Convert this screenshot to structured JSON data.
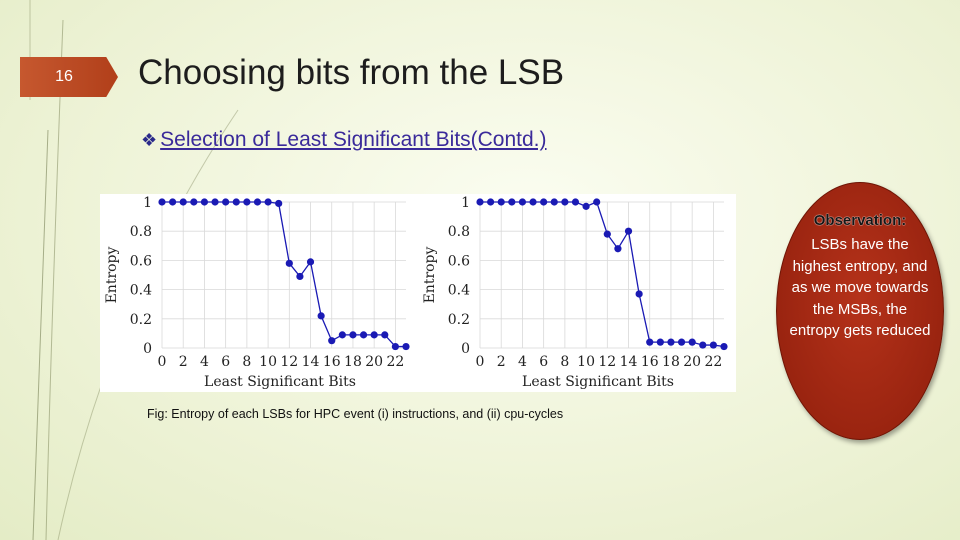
{
  "slide": {
    "number": "16",
    "title": "Choosing bits from the LSB",
    "subtitle": "Selection of Least Significant Bits(Contd.)",
    "caption": "Fig: Entropy of each LSBs for HPC event (i) instructions, and (ii) cpu-cycles"
  },
  "observation": {
    "title": "Observation:",
    "body": "LSBs have the highest entropy, and as we move towards the MSBs, the entropy gets reduced"
  },
  "colors": {
    "accent": "#b13f1a",
    "marker": "#1a1ab4",
    "subtitle": "#3a2a9a"
  },
  "chart_data": [
    {
      "type": "line",
      "title": "",
      "xlabel": "Least Significant Bits",
      "ylabel": "Entropy",
      "xlim": [
        0,
        23
      ],
      "ylim": [
        0,
        1
      ],
      "xticks": [
        0,
        2,
        4,
        6,
        8,
        10,
        12,
        14,
        16,
        18,
        20,
        22
      ],
      "yticks": [
        0,
        0.2,
        0.4,
        0.6,
        0.8,
        1
      ],
      "grid": true,
      "x": [
        0,
        1,
        2,
        3,
        4,
        5,
        6,
        7,
        8,
        9,
        10,
        11,
        12,
        13,
        14,
        15,
        16,
        17,
        18,
        19,
        20,
        21,
        22,
        23
      ],
      "y": [
        1,
        1,
        1,
        1,
        1,
        1,
        1,
        1,
        1,
        1,
        1,
        0.99,
        0.58,
        0.49,
        0.59,
        0.22,
        0.05,
        0.09,
        0.09,
        0.09,
        0.09,
        0.09,
        0.01,
        0.01
      ]
    },
    {
      "type": "line",
      "title": "",
      "xlabel": "Least Significant Bits",
      "ylabel": "Entropy",
      "xlim": [
        0,
        23
      ],
      "ylim": [
        0,
        1
      ],
      "xticks": [
        0,
        2,
        4,
        6,
        8,
        10,
        12,
        14,
        16,
        18,
        20,
        22
      ],
      "yticks": [
        0,
        0.2,
        0.4,
        0.6,
        0.8,
        1
      ],
      "grid": true,
      "x": [
        0,
        1,
        2,
        3,
        4,
        5,
        6,
        7,
        8,
        9,
        10,
        11,
        12,
        13,
        14,
        15,
        16,
        17,
        18,
        19,
        20,
        21,
        22,
        23
      ],
      "y": [
        1,
        1,
        1,
        1,
        1,
        1,
        1,
        1,
        1,
        1,
        0.97,
        1,
        0.78,
        0.68,
        0.8,
        0.37,
        0.04,
        0.04,
        0.04,
        0.04,
        0.04,
        0.02,
        0.02,
        0.01
      ]
    }
  ]
}
